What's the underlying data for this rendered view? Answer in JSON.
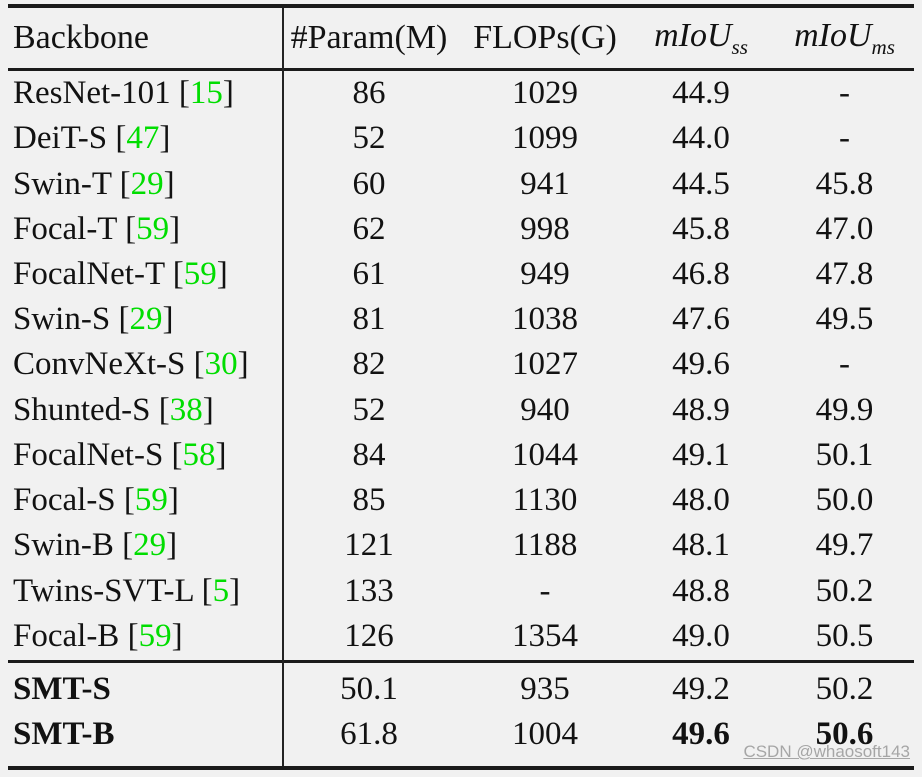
{
  "colors": {
    "background": "#f1f1f1",
    "rule": "#1b1b1b",
    "text": "#121212",
    "citation_green": "#00dd00",
    "watermark_gray": "#a6a6a6"
  },
  "table": {
    "header": {
      "backbone": "Backbone",
      "param": "#Param(M)",
      "flops": "FLOPs(G)",
      "miou_ss_base": "mIoU",
      "miou_ss_sub": "ss",
      "miou_ms_base": "mIoU",
      "miou_ms_sub": "ms"
    },
    "body_rows": [
      {
        "backbone": "ResNet-101",
        "ref": "15",
        "param": "86",
        "flops": "1029",
        "miou_ss": "44.9",
        "miou_ms": "-"
      },
      {
        "backbone": "DeiT-S",
        "ref": "47",
        "param": "52",
        "flops": "1099",
        "miou_ss": "44.0",
        "miou_ms": "-"
      },
      {
        "backbone": "Swin-T",
        "ref": "29",
        "param": "60",
        "flops": "941",
        "miou_ss": "44.5",
        "miou_ms": "45.8"
      },
      {
        "backbone": "Focal-T",
        "ref": "59",
        "param": "62",
        "flops": "998",
        "miou_ss": "45.8",
        "miou_ms": "47.0"
      },
      {
        "backbone": "FocalNet-T",
        "ref": "59",
        "param": "61",
        "flops": "949",
        "miou_ss": "46.8",
        "miou_ms": "47.8"
      },
      {
        "backbone": "Swin-S",
        "ref": "29",
        "param": "81",
        "flops": "1038",
        "miou_ss": "47.6",
        "miou_ms": "49.5"
      },
      {
        "backbone": "ConvNeXt-S",
        "ref": "30",
        "param": "82",
        "flops": "1027",
        "miou_ss": "49.6",
        "miou_ms": "-"
      },
      {
        "backbone": "Shunted-S",
        "ref": "38",
        "param": "52",
        "flops": "940",
        "miou_ss": "48.9",
        "miou_ms": "49.9"
      },
      {
        "backbone": "FocalNet-S",
        "ref": "58",
        "param": "84",
        "flops": "1044",
        "miou_ss": "49.1",
        "miou_ms": "50.1"
      },
      {
        "backbone": "Focal-S",
        "ref": "59",
        "param": "85",
        "flops": "1130",
        "miou_ss": "48.0",
        "miou_ms": "50.0"
      },
      {
        "backbone": "Swin-B",
        "ref": "29",
        "param": "121",
        "flops": "1188",
        "miou_ss": "48.1",
        "miou_ms": "49.7"
      },
      {
        "backbone": "Twins-SVT-L",
        "ref": "5",
        "param": "133",
        "flops": "-",
        "miou_ss": "48.8",
        "miou_ms": "50.2"
      },
      {
        "backbone": "Focal-B",
        "ref": "59",
        "param": "126",
        "flops": "1354",
        "miou_ss": "49.0",
        "miou_ms": "50.5"
      }
    ],
    "footer_rows": [
      {
        "backbone": "SMT-S",
        "param": "50.1",
        "flops": "935",
        "miou_ss": "49.2",
        "miou_ms": "50.2",
        "bold_backbone": true,
        "bold_miou": false
      },
      {
        "backbone": "SMT-B",
        "param": "61.8",
        "flops": "1004",
        "miou_ss": "49.6",
        "miou_ms": "50.6",
        "bold_backbone": true,
        "bold_miou": true
      }
    ]
  },
  "watermark": "CSDN @whaosoft143"
}
